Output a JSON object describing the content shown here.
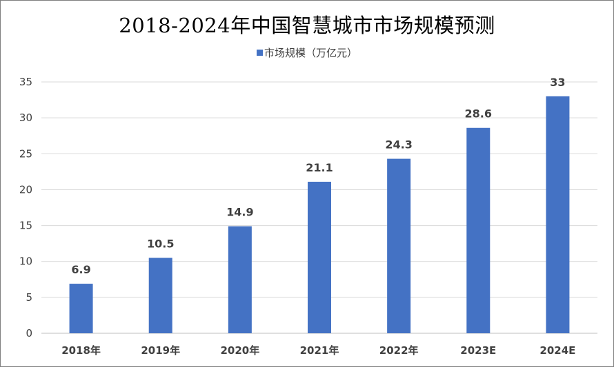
{
  "chart_data": {
    "type": "bar",
    "title": "2018-2024年中国智慧城市市场规模预测",
    "categories": [
      "2018年",
      "2019年",
      "2020年",
      "2021年",
      "2022年",
      "2023E",
      "2024E"
    ],
    "series": [
      {
        "name": "市场规模（万亿元）",
        "values": [
          6.9,
          10.5,
          14.9,
          21.1,
          24.3,
          28.6,
          33
        ],
        "data_labels": [
          "6.9",
          "10.5",
          "14.9",
          "21.1",
          "24.3",
          "28.6",
          "33"
        ],
        "color": "#4472C4"
      }
    ],
    "xlabel": "",
    "ylabel": "",
    "ylim": [
      0,
      35
    ],
    "yticks": [
      0,
      5,
      10,
      15,
      20,
      25,
      30,
      35
    ],
    "grid": true,
    "legend_position": "top"
  }
}
